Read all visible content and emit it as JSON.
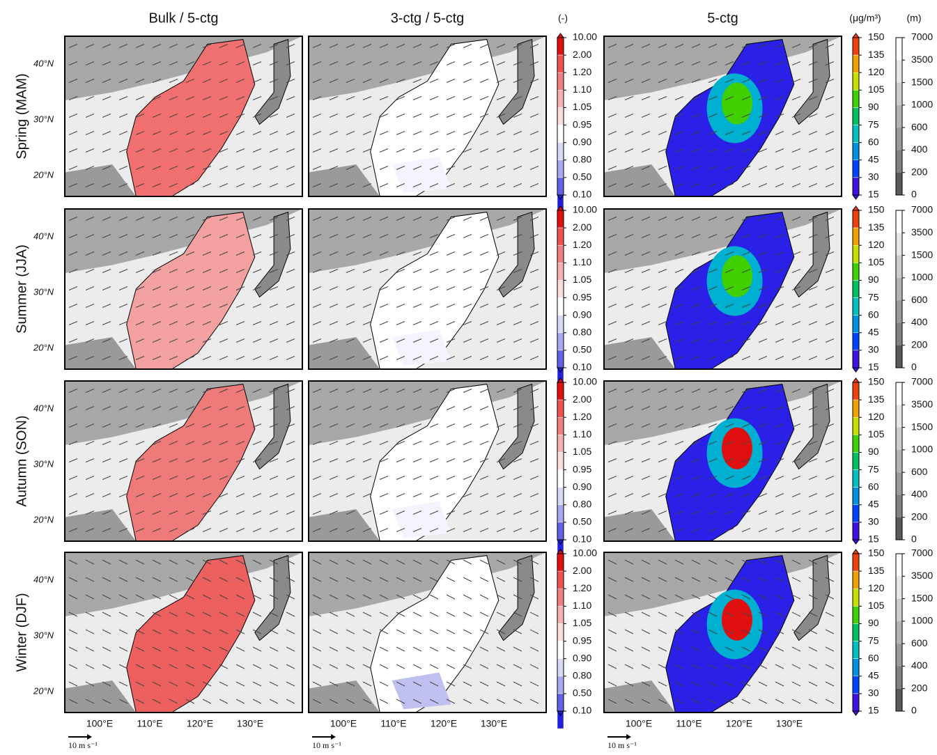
{
  "columns": [
    "Bulk / 5-ctg",
    "3-ctg / 5-ctg",
    "5-ctg"
  ],
  "rows": [
    "Spring (MAM)",
    "Summer (JJA)",
    "Autumn (SON)",
    "Winter (DJF)"
  ],
  "latitude_labels": [
    "40°N",
    "30°N",
    "20°N"
  ],
  "longitude_labels": [
    "100°E",
    "110°E",
    "120°E",
    "130°E"
  ],
  "wind_scale": "10 m s⁻¹",
  "colorbars": {
    "ratio": {
      "unit": "(-)",
      "ticks": [
        "10.00",
        "2.00",
        "1.20",
        "1.10",
        "1.05",
        "0.95",
        "0.90",
        "0.80",
        "0.50",
        "0.10"
      ],
      "colors": [
        "#e01010",
        "#f05050",
        "#f08080",
        "#f5b0b0",
        "#fadcdc",
        "#ffffff",
        "#d8d8f8",
        "#a8a8f0",
        "#6060e8",
        "#2020d8"
      ]
    },
    "concentration": {
      "unit": "(μg/m³)",
      "ticks": [
        150,
        135,
        120,
        105,
        90,
        75,
        60,
        45,
        30,
        15
      ],
      "colors": [
        "#f04010",
        "#f0a000",
        "#c8e000",
        "#40d000",
        "#00c060",
        "#00c0c0",
        "#0090e0",
        "#0040ff",
        "#4010e0"
      ]
    },
    "elevation": {
      "unit": "(m)",
      "ticks": [
        7000,
        3500,
        1500,
        1000,
        600,
        400,
        200,
        0
      ],
      "colors": [
        "#ffffff",
        "#e6e6e6",
        "#cccccc",
        "#b3b3b3",
        "#999999",
        "#808080",
        "#595959"
      ]
    }
  }
}
